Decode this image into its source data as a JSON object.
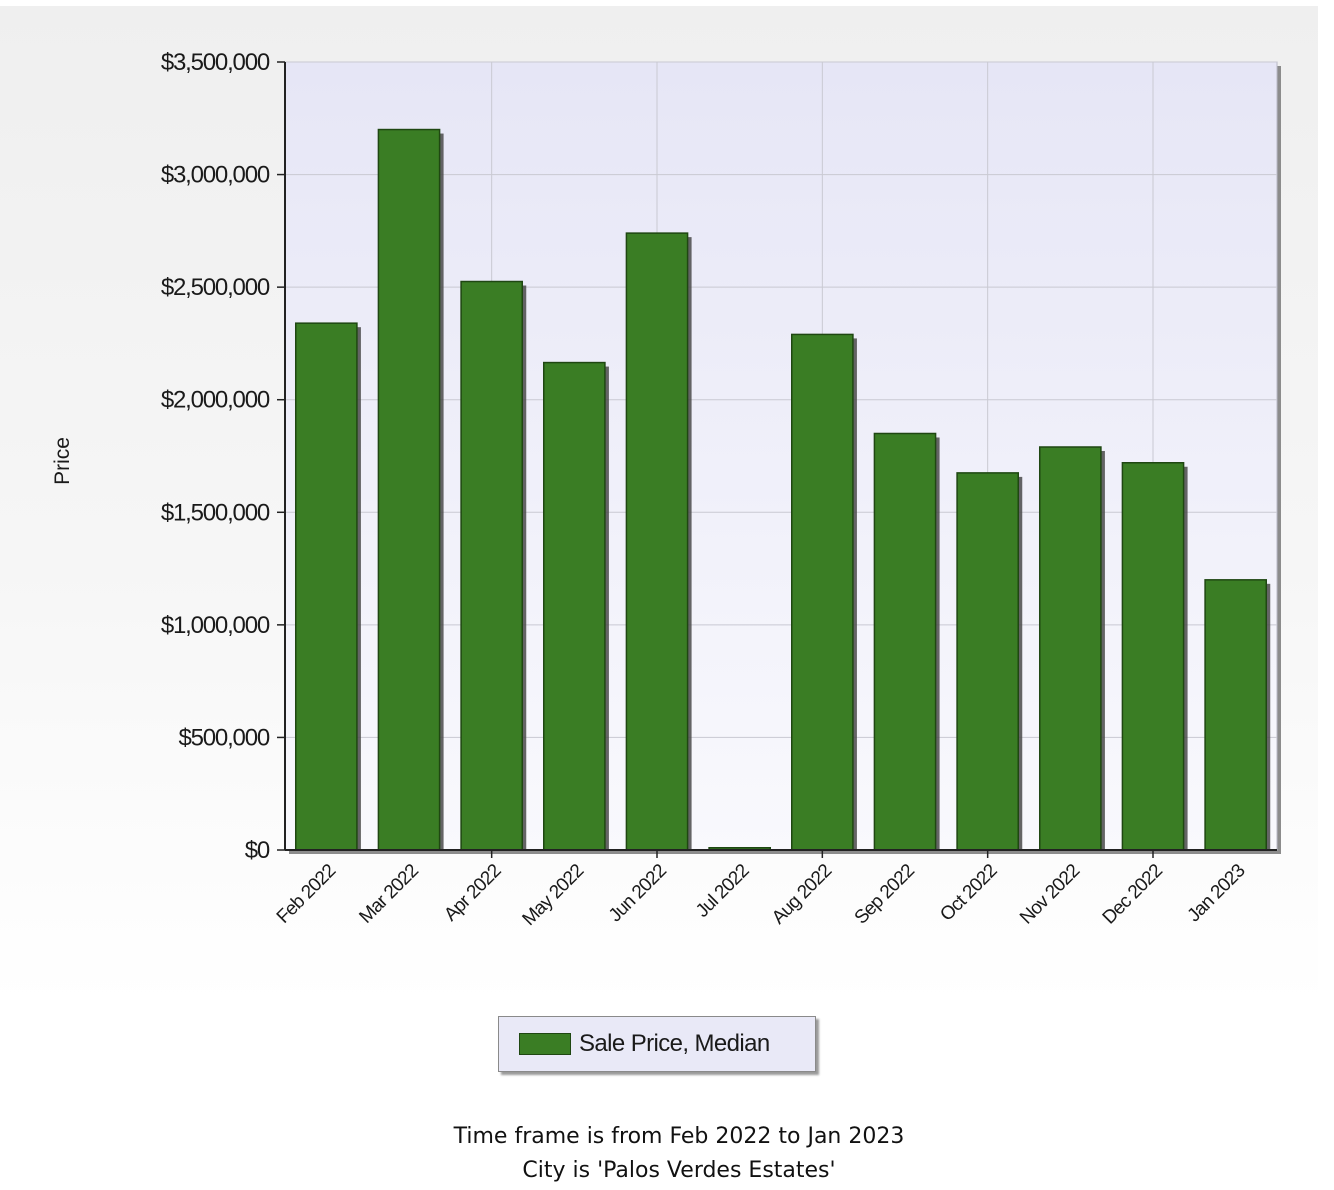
{
  "chart_data": {
    "type": "bar",
    "categories": [
      "Feb 2022",
      "Mar 2022",
      "Apr 2022",
      "May 2022",
      "Jun 2022",
      "Jul 2022",
      "Aug 2022",
      "Sep 2022",
      "Oct 2022",
      "Nov 2022",
      "Dec 2022",
      "Jan 2023"
    ],
    "series": [
      {
        "name": "Sale Price, Median",
        "color": "#3a7d24",
        "values": [
          2340000,
          3200000,
          2525000,
          2165000,
          2740000,
          10000,
          2290000,
          1850000,
          1675000,
          1790000,
          1720000,
          1200000
        ]
      }
    ],
    "title": "",
    "xlabel": "",
    "ylabel": "Price",
    "ylim": [
      0,
      3500000
    ],
    "yticks": [
      0,
      500000,
      1000000,
      1500000,
      2000000,
      2500000,
      3000000,
      3500000
    ],
    "ytick_labels": [
      "$0",
      "$500,000",
      "$1,000,000",
      "$1,500,000",
      "$2,000,000",
      "$2,500,000",
      "$3,000,000",
      "$3,500,000"
    ],
    "grid": true,
    "legend_position": "bottom-center",
    "plot_background": "#e8e8f7"
  },
  "legend": {
    "label": "Sale Price, Median"
  },
  "caption": {
    "line1": "Time frame is from Feb 2022 to Jan 2023",
    "line2": "City is 'Palos Verdes Estates'"
  }
}
